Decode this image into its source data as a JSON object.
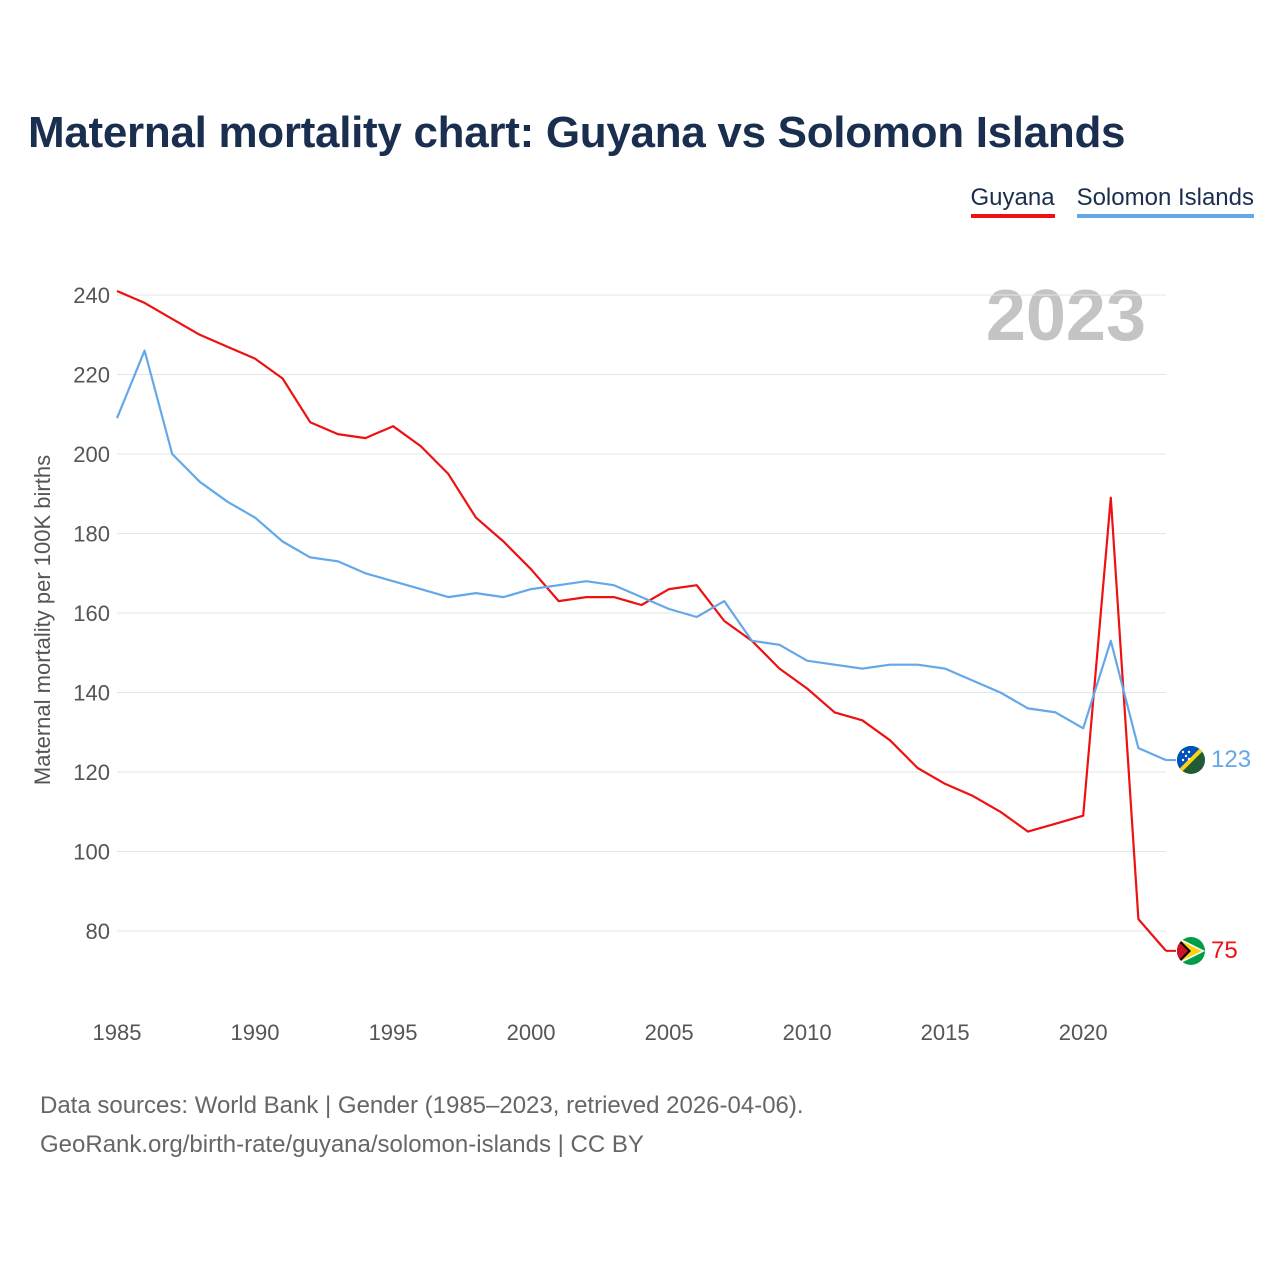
{
  "title": "Maternal mortality chart: Guyana vs Solomon Islands",
  "year_watermark": "2023",
  "legend": [
    {
      "name": "Guyana",
      "color": "#ee1111"
    },
    {
      "name": "Solomon Islands",
      "color": "#64a8e8"
    }
  ],
  "footer": {
    "line1": "Data sources: World Bank | Gender (1985–2023, retrieved 2026-04-06).",
    "line2": "GeoRank.org/birth-rate/guyana/solomon-islands | CC BY"
  },
  "chart_data": {
    "type": "line",
    "title": "Maternal mortality chart: Guyana vs Solomon Islands",
    "xlabel": "",
    "ylabel": "Maternal mortality per 100K births",
    "xlim": [
      1985,
      2023
    ],
    "ylim": [
      70,
      245
    ],
    "x_ticks": [
      1985,
      1990,
      1995,
      2000,
      2005,
      2010,
      2015,
      2020
    ],
    "y_ticks": [
      80,
      100,
      120,
      140,
      160,
      180,
      200,
      220,
      240
    ],
    "grid": true,
    "legend_position": "top-right",
    "x": [
      1985,
      1986,
      1987,
      1988,
      1989,
      1990,
      1991,
      1992,
      1993,
      1994,
      1995,
      1996,
      1997,
      1998,
      1999,
      2000,
      2001,
      2002,
      2003,
      2004,
      2005,
      2006,
      2007,
      2008,
      2009,
      2010,
      2011,
      2012,
      2013,
      2014,
      2015,
      2016,
      2017,
      2018,
      2019,
      2020,
      2021,
      2022,
      2023
    ],
    "series": [
      {
        "name": "Guyana",
        "color": "#ee1111",
        "end_label": "75",
        "flag": "guyana-flag",
        "values": [
          241,
          238,
          234,
          230,
          227,
          224,
          219,
          208,
          205,
          204,
          207,
          202,
          195,
          184,
          178,
          171,
          163,
          164,
          164,
          162,
          166,
          167,
          158,
          153,
          146,
          141,
          135,
          133,
          128,
          121,
          117,
          114,
          110,
          105,
          107,
          109,
          189,
          83,
          75
        ]
      },
      {
        "name": "Solomon Islands",
        "color": "#64a8e8",
        "end_label": "123",
        "flag": "solomon-islands-flag",
        "values": [
          209,
          226,
          200,
          193,
          188,
          184,
          178,
          174,
          173,
          170,
          168,
          166,
          164,
          165,
          164,
          166,
          167,
          168,
          167,
          164,
          161,
          159,
          163,
          153,
          152,
          148,
          147,
          146,
          147,
          147,
          146,
          143,
          140,
          136,
          135,
          131,
          153,
          126,
          123
        ]
      }
    ]
  }
}
